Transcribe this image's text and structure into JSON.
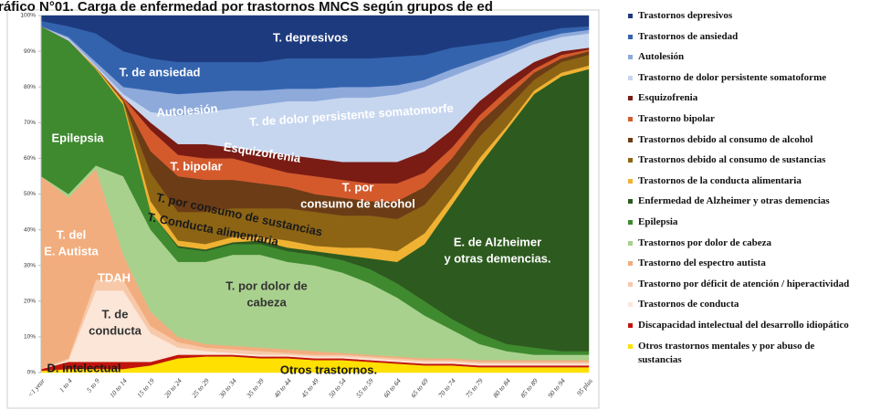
{
  "chart_data": {
    "type": "stacked_area",
    "title": "ráfico N°01. Carga de enfermedad por trastornos MNCS según grupos de ed",
    "categories": [
      "<1 year",
      "1 to 4",
      "5 to 9",
      "10 to 14",
      "15 to 19",
      "20 to 24",
      "25 to 29",
      "30 to 34",
      "35 to 39",
      "40 to 44",
      "45 to 49",
      "50 to 54",
      "55 to 59",
      "60 to 64",
      "65 to 69",
      "70 to 74",
      "75 to 79",
      "80 to 84",
      "85 to 89",
      "90 to 94",
      "95 plus"
    ],
    "ylim": [
      0,
      100
    ],
    "yticks": [
      {
        "value": 0,
        "label": "0%"
      },
      {
        "value": 10,
        "label": "10%"
      },
      {
        "value": 20,
        "label": "20%"
      },
      {
        "value": 30,
        "label": "30%"
      },
      {
        "value": 40,
        "label": "40%"
      },
      {
        "value": 50,
        "label": "50%"
      },
      {
        "value": 60,
        "label": "60%"
      },
      {
        "value": 70,
        "label": "70%"
      },
      {
        "value": 80,
        "label": "80%"
      },
      {
        "value": 90,
        "label": "90%"
      },
      {
        "value": 100,
        "label": "100%"
      }
    ],
    "series": [
      {
        "name": "Trastornos depresivos",
        "color": "#1d3a7e",
        "values": [
          1.5,
          3,
          5,
          10,
          12,
          13,
          13,
          13,
          13,
          12,
          12,
          12,
          12,
          11.5,
          11,
          9,
          8,
          7,
          5,
          3.5,
          3
        ]
      },
      {
        "name": "Trastornos de ansiedad",
        "color": "#3463ae",
        "values": [
          1.5,
          3,
          8,
          10,
          9,
          9,
          8.5,
          8,
          8,
          8.5,
          8.5,
          8,
          8,
          8,
          7,
          6,
          4.5,
          3,
          2,
          1.5,
          1
        ]
      },
      {
        "name": "Autolesión",
        "color": "#8eaadb",
        "values": [
          0,
          0.5,
          1,
          2,
          6,
          6,
          5.5,
          5,
          4,
          3.5,
          3.5,
          3,
          3,
          2.5,
          2,
          2,
          1.5,
          1,
          1,
          1,
          1
        ]
      },
      {
        "name": "Trastorno de dolor persistente somatoforme",
        "color": "#c7d6ef",
        "values": [
          0,
          0.5,
          0.5,
          1,
          3,
          8,
          9,
          11,
          13,
          15,
          16,
          18,
          18,
          19,
          18,
          15,
          10,
          7,
          5,
          4,
          4
        ]
      },
      {
        "name": "Esquizofrenia",
        "color": "#7a1c14",
        "values": [
          0,
          0,
          0,
          0,
          2,
          3,
          4,
          3,
          4,
          5,
          5,
          5,
          6,
          6,
          6,
          5,
          4,
          3,
          2,
          1,
          0.5
        ]
      },
      {
        "name": "Trastorno bipolar",
        "color": "#d45a2c",
        "values": [
          0,
          0,
          0,
          0.5,
          6,
          6,
          6,
          6,
          5,
          4,
          5,
          5,
          5,
          5,
          4,
          3,
          2,
          2,
          1,
          1,
          0.5
        ]
      },
      {
        "name": "Trastornos debido  al consumo de alcohol",
        "color": "#6b3c16",
        "values": [
          0,
          0,
          0,
          0.5,
          6,
          10,
          9,
          8,
          7,
          6,
          5,
          5,
          4,
          5,
          5,
          4,
          4,
          3,
          2,
          1,
          1
        ]
      },
      {
        "name": "Trastornos debido al consumo de sustancias",
        "color": "#8c6414",
        "values": [
          0,
          0,
          0,
          0,
          8,
          8,
          9,
          8,
          8,
          9,
          9.5,
          9,
          9,
          9,
          8,
          7,
          6,
          5,
          3,
          3,
          3
        ]
      },
      {
        "name": "Trastornos de la conducta alimentaria",
        "color": "#f0b232",
        "values": [
          0,
          0,
          0.5,
          1,
          3,
          1.5,
          1.5,
          1.5,
          1,
          2,
          1.5,
          2,
          3,
          3,
          3,
          2,
          2,
          1,
          1,
          1,
          1
        ]
      },
      {
        "name": "Enfermedad de Alzheimer y otras demencias",
        "color": "#2d5a1f",
        "values": [
          0,
          0,
          0,
          0,
          0,
          0.5,
          0.5,
          0.5,
          1,
          1,
          1,
          1.5,
          3,
          6,
          16,
          32,
          47,
          60,
          71,
          77,
          79
        ]
      },
      {
        "name": "Epilepsia",
        "color": "#3f8a2f",
        "values": [
          42,
          43,
          27,
          20,
          5,
          4,
          3,
          3,
          3,
          3,
          3,
          3.5,
          4,
          4,
          4,
          3,
          3,
          2,
          2,
          1,
          1
        ]
      },
      {
        "name": "Trastornos por dolor de cabeza",
        "color": "#a9d18e",
        "values": [
          0,
          1,
          1,
          22,
          23,
          21,
          23,
          25.5,
          26,
          24.5,
          24,
          22.5,
          20,
          16.5,
          12,
          8,
          4.5,
          2.5,
          1.5,
          1.5,
          1.5
        ]
      },
      {
        "name": "Trastorno del espectro autista",
        "color": "#f2ad7e",
        "values": [
          54,
          45,
          31,
          7,
          4,
          1.5,
          1,
          1,
          1,
          1,
          1,
          0.5,
          0.5,
          0.5,
          0.5,
          0.5,
          0.5,
          0.5,
          0.5,
          0.5,
          0.5
        ]
      },
      {
        "name": "Trastorno por déficit de atención / hiperactividad",
        "color": "#f7c9a9",
        "values": [
          0,
          0.5,
          3,
          3,
          2,
          1.5,
          1,
          1,
          1,
          0.5,
          0.5,
          0.5,
          0.5,
          0.5,
          0.5,
          0.5,
          0.5,
          0.5,
          0.5,
          0.5,
          0.5
        ]
      },
      {
        "name": "Trastornos de conducta",
        "color": "#fce6d8",
        "values": [
          0,
          0.5,
          20,
          20,
          8,
          2,
          1,
          0.5,
          0.5,
          0.5,
          0.5,
          0.5,
          0.5,
          0.5,
          0.5,
          0.5,
          0.5,
          0.5,
          0.5,
          0.5,
          0.5
        ]
      },
      {
        "name": "Discapacidad intelectual del desarrollo idiopático",
        "color": "#c0140c",
        "values": [
          0.5,
          2,
          2,
          2,
          1,
          1,
          0.5,
          0.5,
          0.5,
          0.5,
          0.5,
          0.5,
          0.5,
          0.5,
          0.5,
          0.5,
          0.5,
          0.5,
          0.5,
          0.5,
          0.5
        ]
      },
      {
        "name": "Otros trastornos mentales y por abuso de sustancias",
        "color": "#ffe000",
        "values": [
          0.5,
          1,
          1,
          1,
          2,
          4,
          4.5,
          4.5,
          4,
          4,
          3.5,
          3.5,
          3,
          2.5,
          2,
          2,
          1.5,
          1.5,
          1.5,
          1.5,
          1.5
        ]
      }
    ],
    "annotations": [
      [
        "T. depresivos"
      ],
      [
        "T. de ansiedad"
      ],
      [
        "Autolesión"
      ],
      [
        "T. de dolor persistente somatomorfe"
      ],
      [
        "Epilepsia"
      ],
      [
        "Esquizofrenia"
      ],
      [
        "T. bipolar"
      ],
      [
        "T. por  consumo de sustancias"
      ],
      [
        "T. Conducta alimentaria"
      ],
      [
        "T. por",
        "consumo de alcohol"
      ],
      [
        "T. del",
        "E. Autista"
      ],
      [
        "E. de Alzheimer",
        "y otras demencias."
      ],
      [
        "TDAH"
      ],
      [
        "T. de",
        "conducta"
      ],
      [
        "T.  por dolor de",
        "cabeza"
      ],
      [
        "D.  intelectual"
      ],
      [
        "Otros trastornos."
      ]
    ]
  }
}
